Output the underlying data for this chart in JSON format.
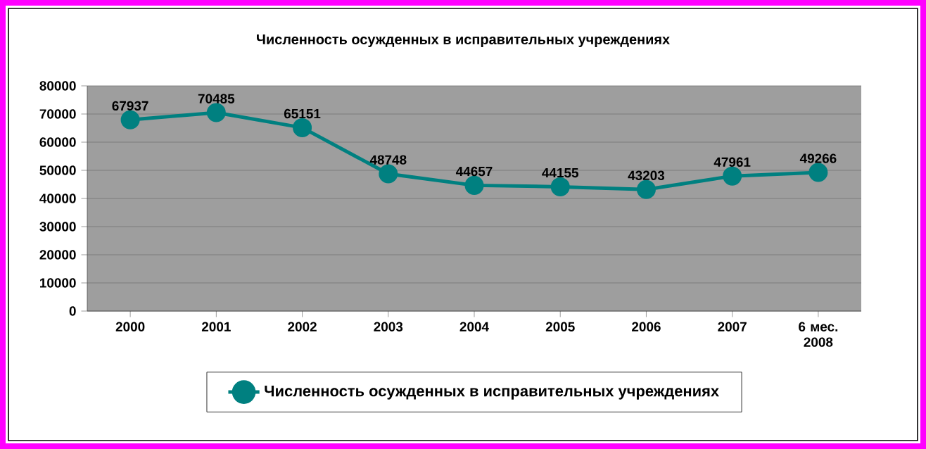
{
  "chart_data": {
    "type": "line",
    "title": "Численность осужденных в исправительных учреждениях",
    "categories": [
      "2000",
      "2001",
      "2002",
      "2003",
      "2004",
      "2005",
      "2006",
      "2007",
      "6 мес. 2008"
    ],
    "series": [
      {
        "name": "Численность осужденных в исправительных учреждениях",
        "color": "#008080",
        "values": [
          67937,
          70485,
          65151,
          48748,
          44657,
          44155,
          43203,
          47961,
          49266
        ]
      }
    ],
    "ylim": [
      0,
      80000
    ],
    "yticks": [
      0,
      10000,
      20000,
      30000,
      40000,
      50000,
      60000,
      70000,
      80000
    ],
    "grid": "y",
    "legend": "bottom",
    "marker": "circle",
    "line_style": "solid",
    "data_labels": true
  }
}
